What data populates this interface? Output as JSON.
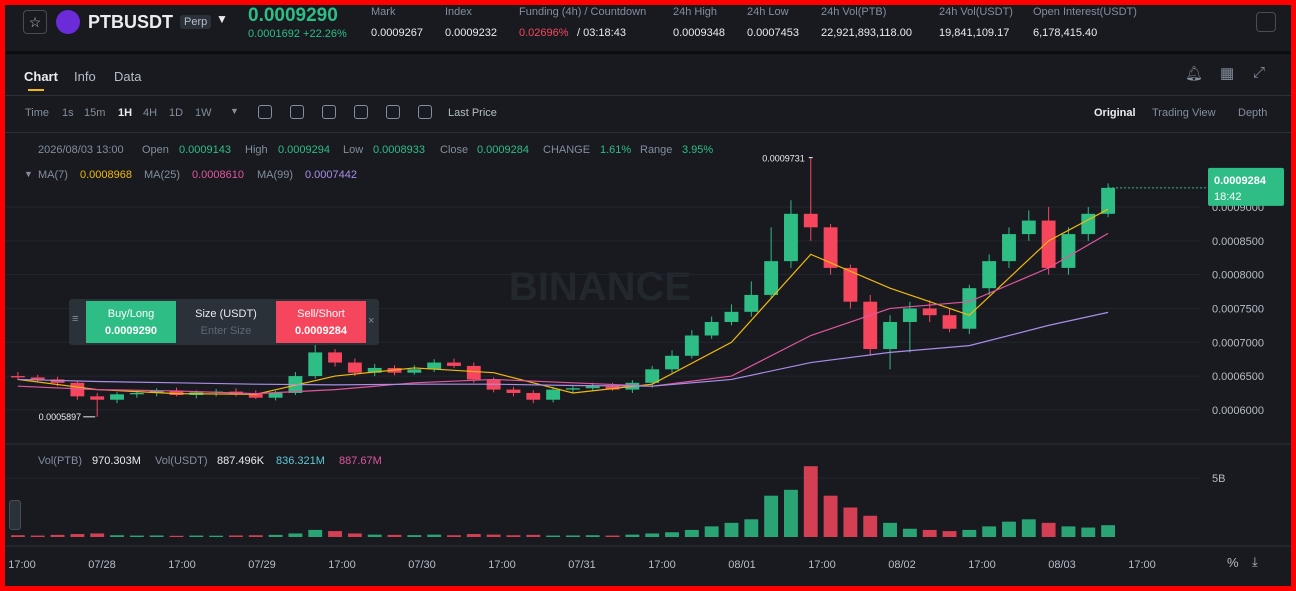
{
  "header": {
    "symbol": "PTBUSDT",
    "tag": "Perp",
    "price": "0.0009290",
    "change": "0.0001692 +22.26%",
    "stats": [
      {
        "label": "Mark",
        "value": "0.0009267"
      },
      {
        "label": "Index",
        "value": "0.0009232"
      },
      {
        "label": "Funding (4h) / Countdown",
        "value": "0.02696%",
        "extra": "/ 03:18:43"
      },
      {
        "label": "24h High",
        "value": "0.0009348"
      },
      {
        "label": "24h Low",
        "value": "0.0007453"
      },
      {
        "label": "24h Vol(PTB)",
        "value": "22,921,893,118.00"
      },
      {
        "label": "24h Vol(USDT)",
        "value": "19,841,109.17"
      },
      {
        "label": "Open Interest(USDT)",
        "value": "6,178,415.40"
      }
    ]
  },
  "tabs": [
    "Chart",
    "Info",
    "Data"
  ],
  "toolbar": {
    "intervals": [
      "Time",
      "1s",
      "15m",
      "1H",
      "4H",
      "1D",
      "1W"
    ],
    "price_mode": "Last Price",
    "views": [
      "Original",
      "Trading View",
      "Depth"
    ]
  },
  "info_line": [
    "2026/08/03 13:00",
    "Open",
    "0.0009143",
    "High",
    "0.0009294",
    "Low",
    "0.0008933",
    "Close",
    "0.0009284",
    "CHANGE",
    "1.61%",
    "Range",
    "3.95%"
  ],
  "order_box": {
    "buy": "Buy/Long",
    "buy_price": "0.0009290",
    "size": "Size (USDT)",
    "placeholder": "Enter Size",
    "sell": "Sell/Short",
    "sell_price": "0.0009284"
  },
  "watermark": "BINANCE",
  "countdown": "18:42",
  "vol_legend": [
    "Vol(PTB)",
    "970.303M",
    "Vol(USDT)",
    "887.496K",
    "836.321M",
    "887.67M"
  ],
  "chart_data": {
    "type": "candlestick",
    "x_labels": [
      "17:00",
      "07/28",
      "17:00",
      "07/29",
      "17:00",
      "07/30",
      "17:00",
      "07/31",
      "17:00",
      "08/01",
      "17:00",
      "08/02",
      "17:00",
      "08/03",
      "17:00"
    ],
    "open": [
      0.00065,
      0.000648,
      0.000645,
      0.00064,
      0.00062,
      0.000615,
      0.000623,
      0.000625,
      0.000628,
      0.000622,
      0.000626,
      0.000627,
      0.000624,
      0.000618,
      0.000625,
      0.00065,
      0.000685,
      0.00067,
      0.000655,
      0.000662,
      0.000655,
      0.00066,
      0.00067,
      0.000665,
      0.000645,
      0.00063,
      0.000625,
      0.000615,
      0.00063,
      0.000632,
      0.000635,
      0.00063,
      0.00064,
      0.00066,
      0.00068,
      0.00071,
      0.00073,
      0.000745,
      0.00077,
      0.00082,
      0.00089,
      0.00087,
      0.00081,
      0.00076,
      0.00069,
      0.00073,
      0.00075,
      0.00074,
      0.00072,
      0.00078,
      0.00082,
      0.00086,
      0.00088,
      0.00081,
      0.00086,
      0.00089
    ],
    "high": [
      0.000656,
      0.000652,
      0.000649,
      0.000643,
      0.000625,
      0.000626,
      0.000629,
      0.000632,
      0.000633,
      0.000629,
      0.000631,
      0.000632,
      0.000629,
      0.000628,
      0.000656,
      0.00071,
      0.00069,
      0.000676,
      0.000668,
      0.000666,
      0.000666,
      0.000675,
      0.000676,
      0.00067,
      0.000648,
      0.000634,
      0.000629,
      0.000634,
      0.000637,
      0.00064,
      0.00064,
      0.000644,
      0.000665,
      0.000688,
      0.000718,
      0.000738,
      0.000756,
      0.00079,
      0.00087,
      0.00091,
      0.0009731,
      0.000875,
      0.000815,
      0.00077,
      0.00074,
      0.00076,
      0.000762,
      0.00075,
      0.000785,
      0.00083,
      0.00087,
      0.000895,
      0.0009,
      0.00087,
      0.0009,
      0.000935
    ],
    "low": [
      0.000644,
      0.000642,
      0.000635,
      0.000615,
      0.0005897,
      0.00061,
      0.000618,
      0.00062,
      0.00062,
      0.000617,
      0.00062,
      0.00062,
      0.000616,
      0.000614,
      0.000622,
      0.000646,
      0.000664,
      0.00065,
      0.00065,
      0.000651,
      0.000652,
      0.000656,
      0.000662,
      0.00064,
      0.000626,
      0.00062,
      0.00061,
      0.000611,
      0.000625,
      0.000628,
      0.000628,
      0.000625,
      0.000633,
      0.000655,
      0.000676,
      0.000705,
      0.000725,
      0.000738,
      0.000765,
      0.00081,
      0.00085,
      0.0008,
      0.00075,
      0.00068,
      0.00066,
      0.000685,
      0.00073,
      0.000715,
      0.000712,
      0.00077,
      0.00081,
      0.00085,
      0.0008,
      0.0008,
      0.00085,
      0.000885
    ],
    "close": [
      0.000648,
      0.000645,
      0.00064,
      0.00062,
      0.000615,
      0.000623,
      0.000625,
      0.000628,
      0.000622,
      0.000626,
      0.000627,
      0.000624,
      0.000618,
      0.000625,
      0.00065,
      0.000685,
      0.00067,
      0.000655,
      0.000662,
      0.000655,
      0.00066,
      0.00067,
      0.000665,
      0.000645,
      0.00063,
      0.000625,
      0.000615,
      0.00063,
      0.000632,
      0.000635,
      0.00063,
      0.00064,
      0.00066,
      0.00068,
      0.00071,
      0.00073,
      0.000745,
      0.00077,
      0.00082,
      0.00089,
      0.00087,
      0.00081,
      0.00076,
      0.00069,
      0.00073,
      0.00075,
      0.00074,
      0.00072,
      0.00078,
      0.00082,
      0.00086,
      0.00088,
      0.00081,
      0.00086,
      0.00089,
      0.0009284
    ],
    "volume": [
      150000000,
      120000000,
      180000000,
      250000000,
      300000000,
      150000000,
      120000000,
      130000000,
      100000000,
      120000000,
      110000000,
      130000000,
      150000000,
      180000000,
      300000000,
      600000000,
      500000000,
      300000000,
      200000000,
      180000000,
      160000000,
      200000000,
      150000000,
      250000000,
      200000000,
      150000000,
      180000000,
      120000000,
      130000000,
      150000000,
      120000000,
      200000000,
      300000000,
      400000000,
      600000000,
      900000000,
      1200000000,
      1500000000,
      3500000000,
      4000000000,
      6000000000,
      3500000000,
      2500000000,
      1800000000,
      1200000000,
      700000000,
      600000000,
      500000000,
      600000000,
      900000000,
      1300000000,
      1500000000,
      1200000000,
      900000000,
      800000000,
      1000000000
    ],
    "up_color": "#2ebd85",
    "down_color": "#f6465d",
    "ylim": [
      0.000551,
      0.001011
    ],
    "yticks": [
      {
        "value": 0.0006,
        "label": "0.0006000"
      },
      {
        "value": 0.00065,
        "label": "0.0006500"
      },
      {
        "value": 0.0007,
        "label": "0.0007000"
      },
      {
        "value": 0.00075,
        "label": "0.0007500"
      },
      {
        "value": 0.0008,
        "label": "0.0008000"
      },
      {
        "value": 0.00085,
        "label": "0.0008500"
      },
      {
        "value": 0.0009,
        "label": "0.0009000"
      }
    ],
    "vol_ylim": [
      0,
      6950000000
    ],
    "vol_yticks": [
      {
        "value": 5000000000,
        "label": "5B"
      }
    ],
    "ma": [
      {
        "name": "MA(7)",
        "legend_value": "0.0008968",
        "color": "#f0b90b",
        "x": [
          0,
          4,
          8,
          12,
          16,
          20,
          24,
          28,
          32,
          36,
          40,
          44,
          48,
          52,
          55
        ],
        "values": [
          0.000645,
          0.00063,
          0.000624,
          0.000623,
          0.00065,
          0.000662,
          0.000655,
          0.000625,
          0.000638,
          0.0007,
          0.00083,
          0.00078,
          0.00074,
          0.00085,
          0.0008968
        ]
      },
      {
        "name": "MA(25)",
        "legend_value": "0.0008610",
        "color": "#e0569c",
        "x": [
          0,
          4,
          8,
          12,
          16,
          20,
          24,
          28,
          32,
          36,
          40,
          44,
          48,
          52,
          55
        ],
        "values": [
          0.000635,
          0.00063,
          0.000628,
          0.000624,
          0.00063,
          0.00064,
          0.000645,
          0.00064,
          0.000635,
          0.00065,
          0.00071,
          0.00075,
          0.00076,
          0.00081,
          0.000861
        ]
      },
      {
        "name": "MA(99)",
        "legend_value": "0.0007442",
        "color": "#a98ee8",
        "x": [
          0,
          4,
          8,
          12,
          16,
          20,
          24,
          28,
          32,
          36,
          40,
          44,
          48,
          52,
          55
        ],
        "values": [
          0.000645,
          0.000642,
          0.00064,
          0.000638,
          0.000637,
          0.000638,
          0.000638,
          0.000636,
          0.000635,
          0.000645,
          0.00067,
          0.000685,
          0.000695,
          0.000725,
          0.0007442
        ]
      }
    ]
  }
}
